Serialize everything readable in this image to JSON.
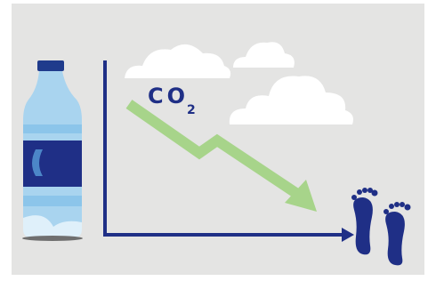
{
  "illustration": {
    "label": "CO",
    "subscript": "2"
  }
}
